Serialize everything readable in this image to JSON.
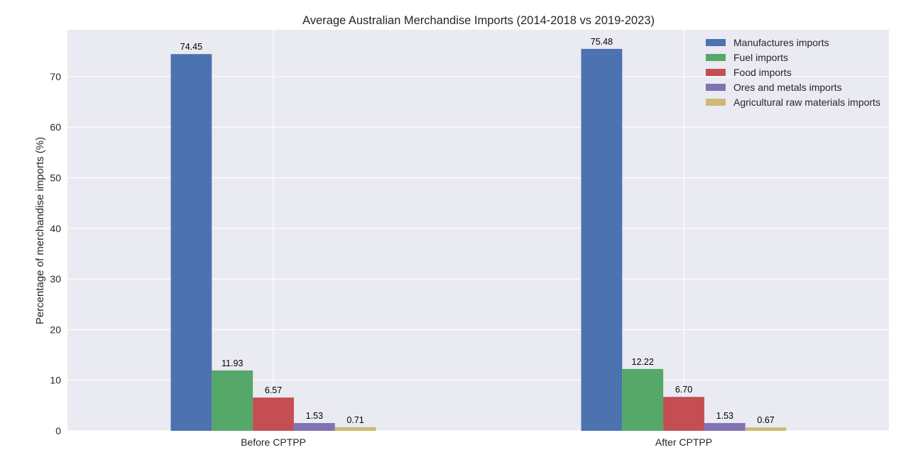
{
  "chart_data": {
    "type": "bar",
    "title": "Average Australian Merchandise Imports (2014-2018 vs 2019-2023)",
    "xlabel": "",
    "ylabel": "Percentage of merchandise imports (%)",
    "categories": [
      "Before CPTPP",
      "After CPTPP"
    ],
    "series": [
      {
        "name": "Manufactures imports",
        "values": [
          74.45,
          75.48
        ],
        "labels": [
          "74.45",
          "75.48"
        ],
        "color": "#4c72b0"
      },
      {
        "name": "Fuel imports",
        "values": [
          11.93,
          12.22
        ],
        "labels": [
          "11.93",
          "12.22"
        ],
        "color": "#55a868"
      },
      {
        "name": "Food imports",
        "values": [
          6.57,
          6.7
        ],
        "labels": [
          "6.57",
          "6.70"
        ],
        "color": "#c44e52"
      },
      {
        "name": "Ores and metals imports",
        "values": [
          1.53,
          1.53
        ],
        "labels": [
          "1.53",
          "1.53"
        ],
        "color": "#8172b2"
      },
      {
        "name": "Agricultural raw materials imports",
        "values": [
          0.71,
          0.67
        ],
        "labels": [
          "0.71",
          "0.67"
        ],
        "color": "#ccb974"
      }
    ],
    "ylim": [
      0,
      79.25
    ],
    "yticks": [
      0,
      10,
      20,
      30,
      40,
      50,
      60,
      70
    ],
    "grid": true,
    "legend_position": "top-right",
    "background_color": "#eaeaf2",
    "grid_color": "#ffffff"
  }
}
